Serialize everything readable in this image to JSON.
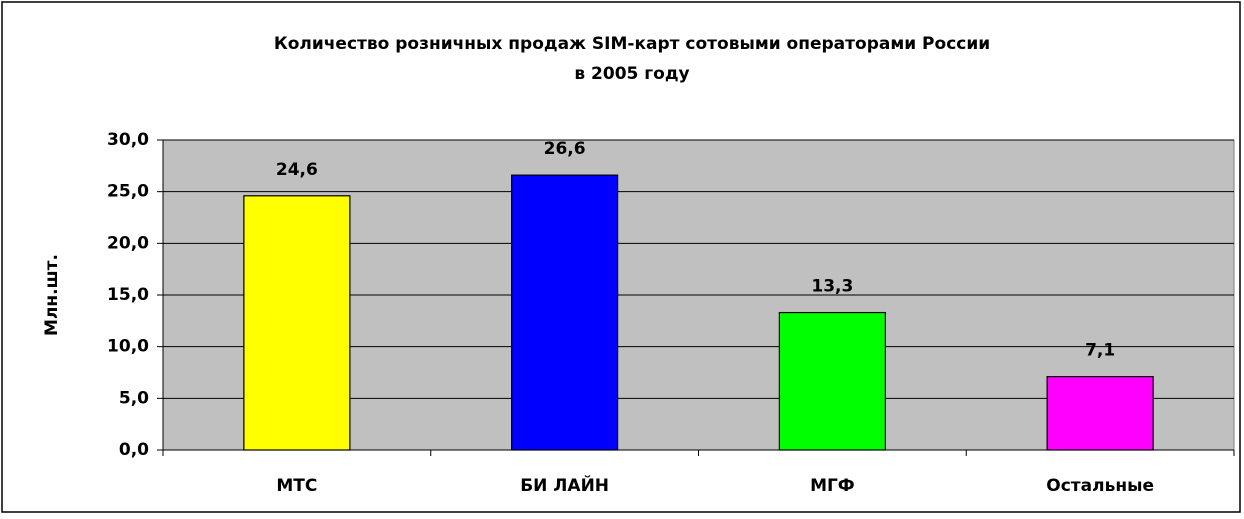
{
  "chart_data": {
    "type": "bar",
    "title": [
      "Количество розничных продаж SIM-карт сотовыми операторами России",
      "в 2005 году"
    ],
    "y_label": "Млн.шт.",
    "categories": [
      "МТС",
      "БИ ЛАЙН",
      "МГФ",
      "Остальные"
    ],
    "values": [
      24.6,
      26.6,
      13.3,
      7.1
    ],
    "value_labels": [
      "24,6",
      "26,6",
      "13,3",
      "7,1"
    ],
    "colors": [
      "#ffff00",
      "#0000ff",
      "#00ff00",
      "#ff00ff"
    ],
    "ylim": [
      0,
      30
    ],
    "yticks": [
      {
        "value": 0,
        "label": "0,0"
      },
      {
        "value": 5,
        "label": "5,0"
      },
      {
        "value": 10,
        "label": "10,0"
      },
      {
        "value": 15,
        "label": "15,0"
      },
      {
        "value": 20,
        "label": "20,0"
      },
      {
        "value": 25,
        "label": "25,0"
      },
      {
        "value": 30,
        "label": "30,0"
      }
    ],
    "grid": true
  }
}
